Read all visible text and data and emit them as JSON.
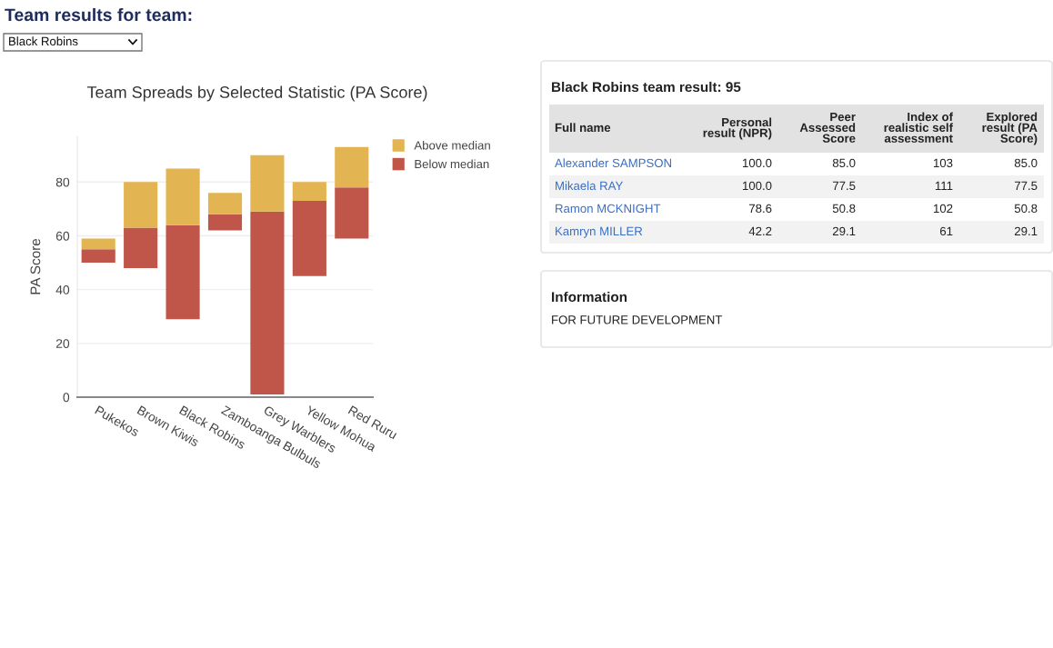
{
  "chart_data": [
    {
      "type": "other",
      "title": "Team results for team:",
      "annotations": [
        "Black Robins"
      ]
    },
    {
      "type": "bar",
      "title": "Team Spreads by Selected Statistic (PA Score)",
      "ylabel": "PA Score",
      "categories": [
        "Pukekos",
        "Brown Kiwis",
        "Black Robins",
        "Zamboanga Bulbuls",
        "Grey Warblers",
        "Yellow Mohua",
        "Red Ruru"
      ],
      "series": [
        {
          "name": "Below median",
          "color": "#c0564a",
          "base": [
            50,
            48,
            29,
            62,
            1,
            45,
            59
          ],
          "values": [
            5,
            15,
            35,
            6,
            68,
            28,
            19
          ]
        },
        {
          "name": "Above median",
          "color": "#e3b552",
          "base": [
            55,
            63,
            64,
            68,
            69,
            73,
            78
          ],
          "values": [
            4,
            17,
            21,
            8,
            21,
            7,
            15
          ]
        }
      ],
      "ylim": [
        0,
        97
      ],
      "yticks": [
        0,
        20,
        40,
        60,
        80
      ],
      "grid": "y",
      "legend": "top right"
    },
    {
      "type": "other",
      "title": "Black Robins team result: 95",
      "annotations": [
        "Full name",
        "Personal\nresult (NPR)",
        "Peer\nAssessed\nScore",
        "Index of\nrealistic self\nassessment",
        "Explored\nresult (PA\nScore)",
        "Alexander SAMPSON",
        "100.0",
        "85.0",
        "103",
        "85.0",
        "Mikaela RAY",
        "100.0",
        "77.5",
        "111",
        "77.5",
        "Ramon MCKNIGHT",
        "78.6",
        "50.8",
        "102",
        "50.8",
        "Kamryn MILLER",
        "42.2",
        "29.1",
        "61",
        "29.1"
      ]
    },
    {
      "type": "other",
      "title": "Information",
      "annotations": [
        "FOR FUTURE DEVELOPMENT"
      ]
    }
  ]
}
